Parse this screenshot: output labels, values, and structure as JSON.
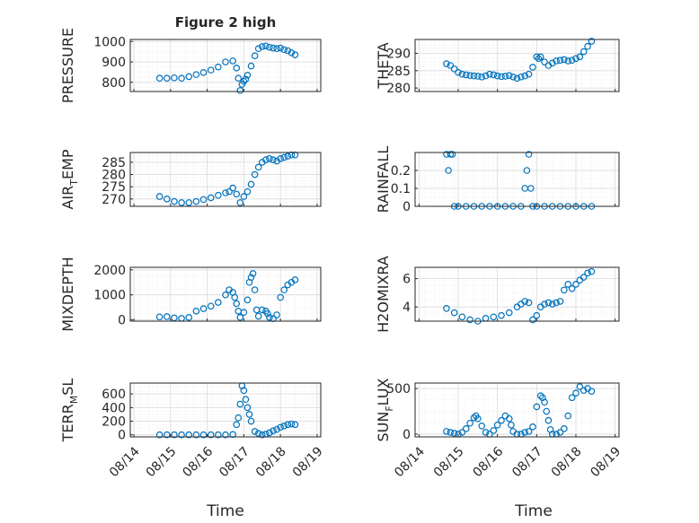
{
  "figure": {
    "title": "Figure 2 high",
    "xlabel": "Time"
  },
  "style": {
    "marker_color": "#0072BD",
    "axis_color": "#262626",
    "grid_color": "#d9d9d9",
    "background": "#ffffff"
  },
  "chart_data": [
    {
      "type": "scatter",
      "name": "PRESSURE",
      "ylabel_main": "PRESSURE",
      "ylabel_sub": "",
      "ylim": [
        755,
        1010
      ],
      "yticks": [
        800,
        900,
        1000
      ],
      "xticks_labeled": false,
      "series": [
        {
          "x": [
            0.7,
            0.9,
            1.1,
            1.3,
            1.5,
            1.7,
            1.9,
            2.1,
            2.3,
            2.5,
            2.7,
            2.8,
            2.85,
            2.9,
            2.95,
            3.0,
            3.05,
            3.1,
            3.2,
            3.3,
            3.4,
            3.5,
            3.6,
            3.7,
            3.8,
            3.9,
            4.0,
            4.1,
            4.2,
            4.3,
            4.4
          ],
          "y": [
            820,
            820,
            822,
            820,
            828,
            838,
            848,
            860,
            875,
            900,
            905,
            870,
            820,
            760,
            790,
            805,
            815,
            835,
            880,
            930,
            965,
            975,
            978,
            972,
            968,
            965,
            968,
            960,
            955,
            945,
            935
          ]
        }
      ]
    },
    {
      "type": "scatter",
      "name": "THETA",
      "ylabel_main": "THETA",
      "ylabel_sub": "",
      "ylim": [
        279,
        294
      ],
      "yticks": [
        280,
        285,
        290
      ],
      "xticks_labeled": false,
      "series": [
        {
          "x": [
            0.7,
            0.8,
            0.9,
            1.0,
            1.1,
            1.2,
            1.3,
            1.4,
            1.5,
            1.6,
            1.7,
            1.8,
            1.9,
            2.0,
            2.1,
            2.2,
            2.3,
            2.4,
            2.5,
            2.6,
            2.7,
            2.8,
            2.9,
            3.0,
            3.05,
            3.1,
            3.2,
            3.3,
            3.4,
            3.5,
            3.6,
            3.7,
            3.8,
            3.9,
            4.0,
            4.1,
            4.2,
            4.3,
            4.4
          ],
          "y": [
            287,
            286.5,
            285.5,
            284.5,
            284,
            283.8,
            283.6,
            283.5,
            283.4,
            283.2,
            283.5,
            284,
            283.8,
            283.5,
            283.3,
            283.4,
            283.6,
            283.2,
            282.8,
            283.2,
            283.5,
            284,
            286,
            289,
            288.5,
            289,
            287.5,
            286.5,
            287.2,
            287.8,
            288,
            288.2,
            287.8,
            288,
            288.5,
            289,
            290.5,
            292,
            293.5
          ]
        }
      ]
    },
    {
      "type": "scatter",
      "name": "AIR_TEMP",
      "ylabel_main": "AIR",
      "ylabel_sub": "T",
      "ylabel_rest": "EMP",
      "ylim": [
        267,
        289
      ],
      "yticks": [
        270,
        275,
        280,
        285
      ],
      "xticks_labeled": false,
      "series": [
        {
          "x": [
            0.7,
            0.9,
            1.1,
            1.3,
            1.5,
            1.7,
            1.9,
            2.1,
            2.3,
            2.5,
            2.6,
            2.7,
            2.8,
            2.9,
            3.0,
            3.1,
            3.2,
            3.3,
            3.4,
            3.5,
            3.6,
            3.7,
            3.8,
            3.9,
            4.0,
            4.1,
            4.2,
            4.3,
            4.4
          ],
          "y": [
            271,
            270,
            269,
            268.5,
            268.5,
            269,
            269.8,
            270.5,
            271.5,
            272.5,
            273,
            274.5,
            272,
            268.5,
            271,
            273,
            276,
            280,
            283,
            285,
            286,
            286.5,
            286,
            285.5,
            286.5,
            287,
            287.5,
            288,
            288
          ]
        }
      ]
    },
    {
      "type": "scatter",
      "name": "RAINFALL",
      "ylabel_main": "RAINFALL",
      "ylabel_sub": "",
      "ylim": [
        0,
        0.3
      ],
      "yticks": [
        0,
        0.1,
        0.2
      ],
      "xticks_labeled": false,
      "series": [
        {
          "x": [
            0.7,
            0.75,
            0.8,
            0.85,
            0.9,
            1.0,
            1.2,
            1.4,
            1.6,
            1.8,
            2.0,
            2.2,
            2.4,
            2.6,
            2.7,
            2.75,
            2.8,
            2.85,
            2.9,
            3.0,
            3.2,
            3.4,
            3.6,
            3.8,
            4.0,
            4.2,
            4.4
          ],
          "y": [
            0.29,
            0.2,
            0.29,
            0.29,
            0,
            0,
            0,
            0,
            0,
            0,
            0,
            0,
            0,
            0,
            0.1,
            0.2,
            0.29,
            0.1,
            0,
            0,
            0,
            0,
            0,
            0,
            0,
            0,
            0
          ]
        }
      ]
    },
    {
      "type": "scatter",
      "name": "MIXDEPTH",
      "ylabel_main": "MIXDEPTH",
      "ylabel_sub": "",
      "ylim": [
        -50,
        2100
      ],
      "yticks": [
        0,
        1000,
        2000
      ],
      "xticks_labeled": false,
      "series": [
        {
          "x": [
            0.7,
            0.9,
            1.1,
            1.3,
            1.5,
            1.7,
            1.9,
            2.1,
            2.3,
            2.5,
            2.6,
            2.7,
            2.75,
            2.8,
            2.85,
            2.9,
            3.0,
            3.1,
            3.15,
            3.2,
            3.25,
            3.3,
            3.35,
            3.4,
            3.5,
            3.6,
            3.65,
            3.7,
            3.8,
            3.9,
            4.0,
            4.1,
            4.2,
            4.3,
            4.4
          ],
          "y": [
            120,
            130,
            80,
            60,
            100,
            350,
            450,
            550,
            700,
            1000,
            1200,
            1100,
            900,
            650,
            350,
            100,
            300,
            800,
            1500,
            1700,
            1850,
            1200,
            400,
            150,
            400,
            350,
            250,
            100,
            50,
            200,
            900,
            1200,
            1400,
            1500,
            1600
          ]
        }
      ]
    },
    {
      "type": "scatter",
      "name": "H2OMIXRA",
      "ylabel_main": "H2OMIXRA",
      "ylabel_sub": "",
      "ylim": [
        3,
        6.8
      ],
      "yticks": [
        4,
        6
      ],
      "xticks_labeled": false,
      "series": [
        {
          "x": [
            0.7,
            0.9,
            1.1,
            1.3,
            1.5,
            1.7,
            1.9,
            2.1,
            2.3,
            2.5,
            2.6,
            2.7,
            2.8,
            2.9,
            3.0,
            3.1,
            3.2,
            3.3,
            3.4,
            3.5,
            3.6,
            3.7,
            3.8,
            3.9,
            4.0,
            4.1,
            4.2,
            4.3,
            4.4
          ],
          "y": [
            3.9,
            3.6,
            3.3,
            3.1,
            3,
            3.2,
            3.3,
            3.4,
            3.6,
            4,
            4.2,
            4.4,
            4.3,
            3.1,
            3.4,
            4,
            4.2,
            4.3,
            4.2,
            4.3,
            4.4,
            5.2,
            5.6,
            5.3,
            5.6,
            5.9,
            6.1,
            6.4,
            6.5
          ]
        }
      ]
    },
    {
      "type": "scatter",
      "name": "TERR_MSL",
      "ylabel_main": "TERR",
      "ylabel_sub": "M",
      "ylabel_rest": "SL",
      "ylim": [
        -30,
        760
      ],
      "yticks": [
        0,
        200,
        400,
        600
      ],
      "xticks_labeled": true,
      "series": [
        {
          "x": [
            0.7,
            0.9,
            1.1,
            1.3,
            1.5,
            1.7,
            1.9,
            2.1,
            2.3,
            2.5,
            2.7,
            2.8,
            2.85,
            2.9,
            2.95,
            3.0,
            3.05,
            3.1,
            3.15,
            3.2,
            3.3,
            3.4,
            3.5,
            3.6,
            3.7,
            3.8,
            3.9,
            4.0,
            4.1,
            4.2,
            4.3,
            4.4
          ],
          "y": [
            0,
            0,
            0,
            0,
            0,
            0,
            0,
            0,
            0,
            0,
            5,
            150,
            250,
            450,
            720,
            650,
            520,
            400,
            300,
            200,
            50,
            20,
            0,
            10,
            30,
            60,
            80,
            110,
            130,
            150,
            160,
            150
          ]
        }
      ]
    },
    {
      "type": "scatter",
      "name": "SUN_FLUX",
      "ylabel_main": "SUN",
      "ylabel_sub": "F",
      "ylabel_rest": "LUX",
      "ylim": [
        -30,
        560
      ],
      "yticks": [
        0,
        500
      ],
      "xticks_labeled": true,
      "series": [
        {
          "x": [
            0.7,
            0.8,
            0.9,
            1.0,
            1.1,
            1.2,
            1.3,
            1.4,
            1.45,
            1.5,
            1.6,
            1.7,
            1.8,
            1.9,
            2.0,
            2.1,
            2.2,
            2.3,
            2.35,
            2.4,
            2.5,
            2.6,
            2.7,
            2.8,
            2.9,
            3.0,
            3.1,
            3.15,
            3.2,
            3.25,
            3.3,
            3.35,
            3.4,
            3.5,
            3.6,
            3.7,
            3.8,
            3.9,
            4.0,
            4.1,
            4.2,
            4.3,
            4.4
          ],
          "y": [
            30,
            20,
            10,
            0,
            20,
            60,
            120,
            180,
            200,
            170,
            90,
            20,
            0,
            40,
            100,
            150,
            200,
            170,
            100,
            30,
            0,
            0,
            20,
            30,
            80,
            300,
            420,
            400,
            350,
            250,
            150,
            50,
            0,
            0,
            20,
            60,
            200,
            400,
            450,
            520,
            480,
            500,
            470
          ]
        }
      ]
    }
  ],
  "x_axis": {
    "xlim": [
      -0.1,
      5.1
    ],
    "xticks": [
      0,
      1,
      2,
      3,
      4,
      5
    ],
    "xtick_labels": [
      "08/14",
      "08/15",
      "08/16",
      "08/17",
      "08/18",
      "08/19"
    ]
  }
}
